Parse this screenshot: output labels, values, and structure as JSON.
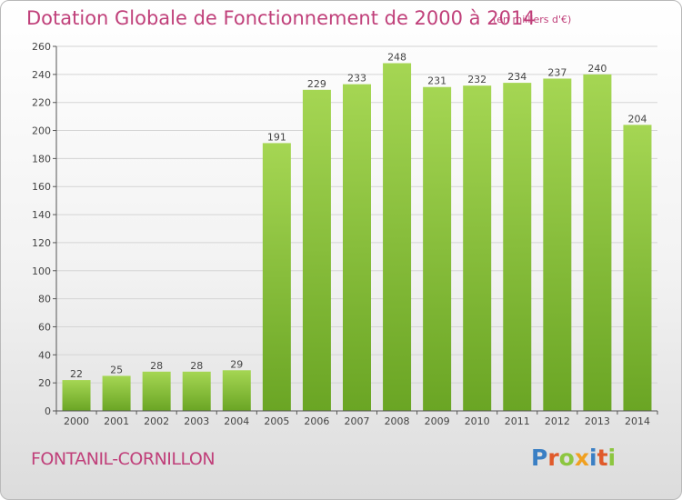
{
  "header": {
    "title": "Dotation Globale de Fonctionnement de 2000 à 2014",
    "subtitle": "(en milliers d'€)"
  },
  "footer": {
    "commune": "FONTANIL-CORNILLON",
    "logo": [
      "P",
      "r",
      "o",
      "x",
      "i",
      "t",
      "i"
    ]
  },
  "chart_data": {
    "type": "bar",
    "categories": [
      "2000",
      "2001",
      "2002",
      "2003",
      "2004",
      "2005",
      "2006",
      "2007",
      "2008",
      "2009",
      "2010",
      "2011",
      "2012",
      "2013",
      "2014"
    ],
    "values": [
      22,
      25,
      28,
      28,
      29,
      191,
      229,
      233,
      248,
      231,
      232,
      234,
      237,
      240,
      204
    ],
    "title": "Dotation Globale de Fonctionnement de 2000 à 2014",
    "subtitle": "(en milliers d'€)",
    "ylim": [
      0,
      260
    ],
    "yticks": [
      0,
      20,
      40,
      60,
      80,
      100,
      120,
      140,
      160,
      180,
      200,
      220,
      240,
      260
    ],
    "grid": true,
    "bar_color": "#7cb82f",
    "bar_color_light": "#9fd14c"
  }
}
